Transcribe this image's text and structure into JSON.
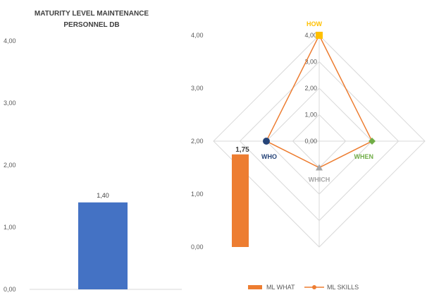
{
  "chart_data": [
    {
      "type": "bar",
      "title_line1": "MATURITY LEVEL MAINTENANCE",
      "title_line2": "PERSONNEL DB",
      "categories": [
        ""
      ],
      "values": [
        1.4
      ],
      "value_labels": [
        "1,40"
      ],
      "ylim": [
        0,
        4
      ],
      "yticks": [
        "0,00",
        "1,00",
        "2,00",
        "3,00",
        "4,00"
      ],
      "bar_color": "#4472C4",
      "grid": false
    },
    {
      "type": "bar",
      "series_name": "ML WHAT",
      "values": [
        1.75
      ],
      "value_labels": [
        "1,75"
      ],
      "ylim": [
        0,
        4
      ],
      "yticks": [
        "0,00",
        "1,00",
        "2,00",
        "3,00",
        "4,00"
      ],
      "bar_color": "#ED7D31"
    },
    {
      "type": "radar",
      "series_name": "ML SKILLS",
      "axes": [
        {
          "label": "HOW",
          "value": 4,
          "label_color": "#FFC000",
          "marker_color": "#FFC000",
          "marker": "square"
        },
        {
          "label": "WHEN",
          "value": 2,
          "label_color": "#70AD47",
          "marker_color": "#70AD47",
          "marker": "diamond"
        },
        {
          "label": "WHICH",
          "value": 1,
          "label_color": "#A5A5A5",
          "marker_color": "#A5A5A5",
          "marker": "triangle"
        },
        {
          "label": "WHO",
          "value": 2,
          "label_color": "#264478",
          "marker_color": "#264478",
          "marker": "circle"
        }
      ],
      "rlim": [
        0,
        4
      ],
      "ring_labels": [
        "0,00",
        "1,00",
        "2,00",
        "3,00",
        "4,00"
      ],
      "line_color": "#ED7D31"
    }
  ],
  "legend": {
    "placement": "bottom-center",
    "items": [
      {
        "label": "ML WHAT",
        "color": "#ED7D31",
        "kind": "bar"
      },
      {
        "label": "ML SKILLS",
        "color": "#ED7D31",
        "kind": "line-marker"
      }
    ]
  }
}
